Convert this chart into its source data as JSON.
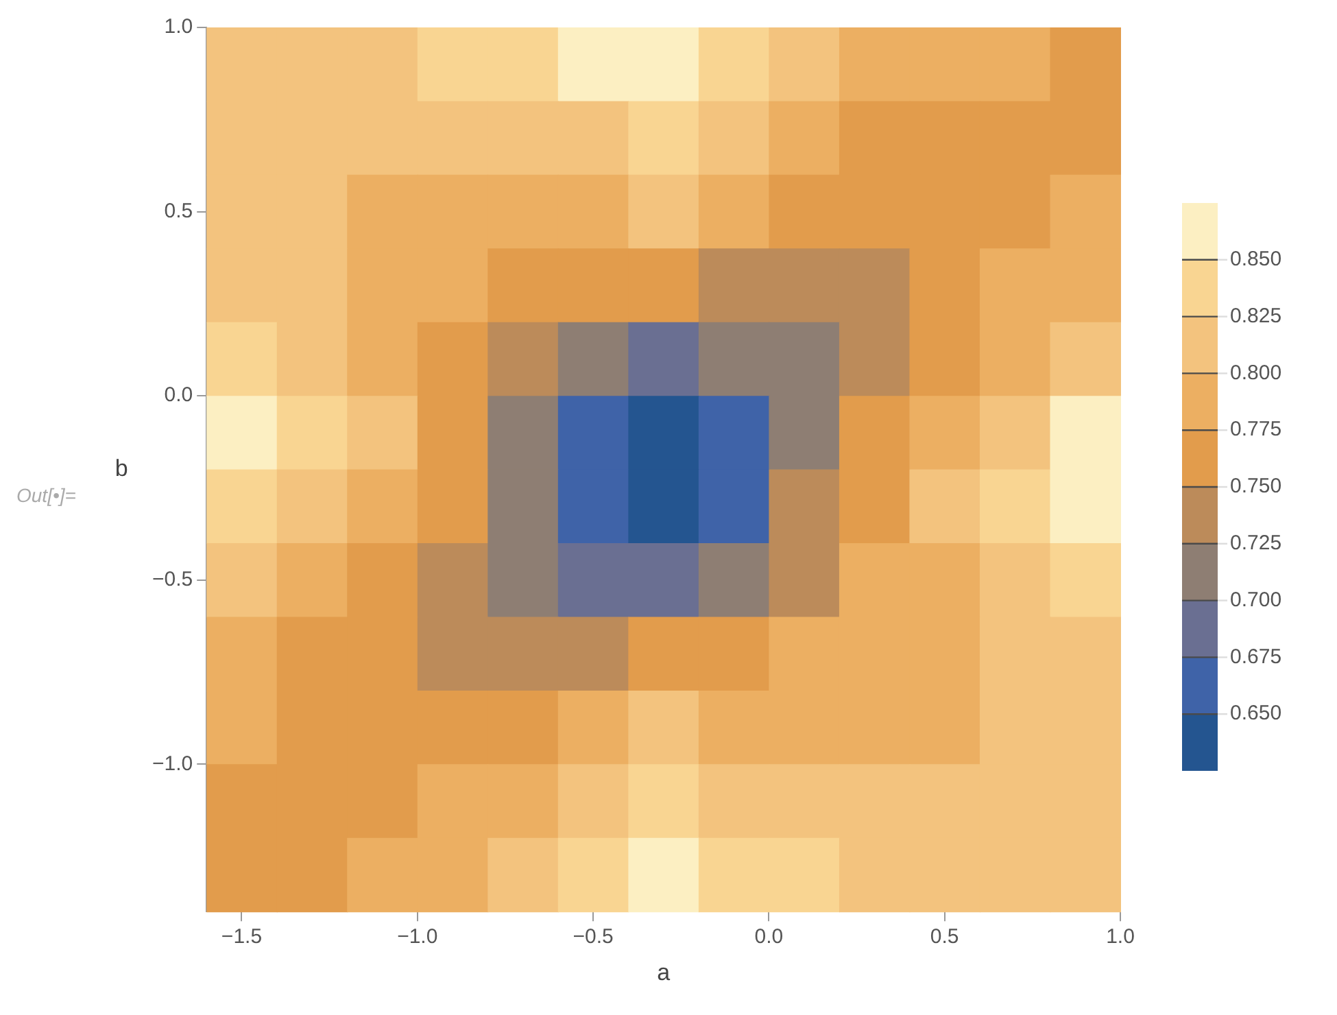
{
  "chart_data": {
    "type": "heatmap",
    "xlabel": "a",
    "ylabel": "b",
    "x": [
      -1.5,
      -1.3,
      -1.1,
      -0.9,
      -0.7,
      -0.5,
      -0.3,
      -0.1,
      0.1,
      0.3,
      0.5,
      0.7,
      0.9
    ],
    "y": [
      0.9,
      0.7,
      0.5,
      0.3,
      0.1,
      -0.1,
      -0.3,
      -0.5,
      -0.7,
      -0.9,
      -1.1,
      -1.3
    ],
    "cells": [
      [
        0.81,
        0.81,
        0.81,
        0.84,
        0.84,
        0.86,
        0.86,
        0.84,
        0.81,
        0.79,
        0.79,
        0.79,
        0.76
      ],
      [
        0.81,
        0.81,
        0.81,
        0.81,
        0.81,
        0.81,
        0.84,
        0.81,
        0.79,
        0.76,
        0.76,
        0.76,
        0.76
      ],
      [
        0.81,
        0.81,
        0.79,
        0.79,
        0.79,
        0.79,
        0.81,
        0.79,
        0.76,
        0.76,
        0.76,
        0.76,
        0.79
      ],
      [
        0.81,
        0.81,
        0.79,
        0.79,
        0.76,
        0.76,
        0.76,
        0.74,
        0.74,
        0.74,
        0.76,
        0.79,
        0.79
      ],
      [
        0.84,
        0.81,
        0.79,
        0.76,
        0.74,
        0.71,
        0.69,
        0.71,
        0.71,
        0.74,
        0.76,
        0.79,
        0.81
      ],
      [
        0.86,
        0.84,
        0.81,
        0.76,
        0.71,
        0.66,
        0.64,
        0.66,
        0.71,
        0.76,
        0.79,
        0.81,
        0.86
      ],
      [
        0.84,
        0.81,
        0.79,
        0.76,
        0.71,
        0.66,
        0.64,
        0.66,
        0.74,
        0.76,
        0.81,
        0.84,
        0.86
      ],
      [
        0.81,
        0.79,
        0.76,
        0.74,
        0.71,
        0.69,
        0.69,
        0.71,
        0.74,
        0.79,
        0.79,
        0.81,
        0.84
      ],
      [
        0.79,
        0.76,
        0.76,
        0.74,
        0.74,
        0.74,
        0.76,
        0.76,
        0.79,
        0.79,
        0.79,
        0.81,
        0.81
      ],
      [
        0.79,
        0.76,
        0.76,
        0.76,
        0.76,
        0.79,
        0.81,
        0.79,
        0.79,
        0.79,
        0.79,
        0.81,
        0.81
      ],
      [
        0.76,
        0.76,
        0.76,
        0.79,
        0.79,
        0.81,
        0.84,
        0.81,
        0.81,
        0.81,
        0.81,
        0.81,
        0.81
      ],
      [
        0.76,
        0.76,
        0.79,
        0.79,
        0.81,
        0.84,
        0.86,
        0.84,
        0.84,
        0.81,
        0.81,
        0.81,
        0.81
      ]
    ],
    "xlim": [
      -1.6,
      1.0
    ],
    "xticks": [
      {
        "value": -1.5,
        "label": "−1.5"
      },
      {
        "value": -1.0,
        "label": "−1.0"
      },
      {
        "value": -0.5,
        "label": "−0.5"
      },
      {
        "value": 0,
        "label": "0.0"
      },
      {
        "value": 0.5,
        "label": "0.5"
      },
      {
        "value": 1.0,
        "label": "1.0"
      }
    ],
    "ylim": [
      -1.4,
      1.0
    ],
    "yticks": [
      {
        "value": -1.0,
        "label": "−1.0"
      },
      {
        "value": -0.5,
        "label": "−0.5"
      },
      {
        "value": 0,
        "label": "0.0"
      },
      {
        "value": 0.5,
        "label": "0.5"
      },
      {
        "value": 1.0,
        "label": "1.0"
      }
    ],
    "clim": [
      0.625,
      0.875
    ],
    "cticks": [
      {
        "value": 0.65,
        "label": "0.650"
      },
      {
        "value": 0.675,
        "label": "0.675"
      },
      {
        "value": 0.7,
        "label": "0.700"
      },
      {
        "value": 0.725,
        "label": "0.725"
      },
      {
        "value": 0.75,
        "label": "0.750"
      },
      {
        "value": 0.775,
        "label": "0.775"
      },
      {
        "value": 0.8,
        "label": "0.800"
      },
      {
        "value": 0.825,
        "label": "0.825"
      },
      {
        "value": 0.85,
        "label": "0.850"
      }
    ],
    "annotations": [
      "Out[•]="
    ]
  }
}
